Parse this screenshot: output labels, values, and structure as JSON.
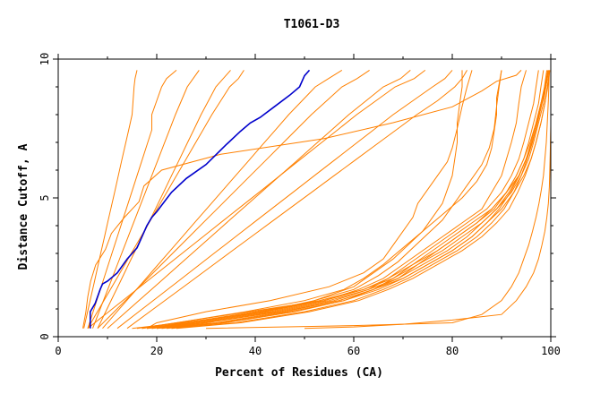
{
  "chart_data": {
    "type": "line",
    "title": "T1061-D3",
    "xlabel": "Percent of Residues (CA)",
    "ylabel": "Distance Cutoff, A",
    "xlim": [
      0,
      100
    ],
    "ylim": [
      0,
      10
    ],
    "xticks": [
      0,
      20,
      40,
      60,
      80,
      100
    ],
    "xtick_labels": [
      "0",
      "20",
      "40",
      "60",
      "80",
      "100"
    ],
    "yticks": [
      0,
      5,
      10
    ],
    "ytick_labels": [
      "0",
      "5",
      "10"
    ],
    "y_minor_step": 1,
    "x_minor_step": 10,
    "grid": false,
    "colors": {
      "highlight": "#0000cc",
      "others": "#ff8000"
    },
    "highlight_series": {
      "x": [
        6.5,
        6.5,
        7.5,
        8.5,
        9.0,
        10.0,
        12.0,
        14.0,
        16.0,
        17.0,
        18.0,
        19.0,
        20.0,
        23.0,
        26.0,
        30.0,
        34.0,
        37.0,
        39.0,
        41.0,
        44.0,
        47.0,
        49.0,
        50.0,
        51.0
      ],
      "y": [
        0.3,
        0.9,
        1.2,
        1.7,
        1.9,
        2.0,
        2.3,
        2.8,
        3.2,
        3.6,
        4.0,
        4.3,
        4.5,
        5.2,
        5.7,
        6.2,
        6.9,
        7.4,
        7.7,
        7.9,
        8.3,
        8.7,
        9.0,
        9.4,
        9.6
      ]
    },
    "other_series": [
      {
        "x": [
          5,
          5.6,
          6,
          6.6,
          7.6,
          9.6,
          10.8,
          13.4,
          16.4,
          17.4,
          21,
          33,
          54,
          68,
          80,
          86,
          89,
          93,
          94
        ],
        "y": [
          0.3,
          0.87,
          1.44,
          2.01,
          2.58,
          3.15,
          3.72,
          4.29,
          4.86,
          5.43,
          6,
          6.57,
          7.14,
          7.71,
          8.28,
          8.85,
          9.2,
          9.42,
          9.6
        ]
      },
      {
        "x": [
          5.2,
          5.9,
          6.6,
          7.3,
          8,
          8.7,
          9.4,
          10.1,
          10.8,
          11.5,
          12.2,
          12.9,
          13.6,
          14.3,
          15,
          15.2,
          15.4,
          15.6,
          16
        ],
        "y": [
          0.3,
          0.85,
          1.4,
          1.95,
          2.5,
          3.05,
          3.6,
          4.15,
          4.7,
          5.25,
          5.8,
          6.35,
          6.9,
          7.45,
          8,
          8.5,
          9,
          9.3,
          9.6
        ]
      },
      {
        "x": [
          6,
          7,
          8,
          9,
          10,
          11,
          12,
          13,
          14,
          15,
          16,
          17,
          18,
          19,
          19,
          20,
          21,
          22,
          24
        ],
        "y": [
          0.3,
          0.85,
          1.4,
          1.95,
          2.5,
          3.05,
          3.6,
          4.15,
          4.7,
          5.25,
          5.8,
          6.35,
          6.9,
          7.45,
          8,
          8.5,
          9,
          9.3,
          9.6
        ]
      },
      {
        "x": [
          7,
          8.2,
          9.4,
          10.6,
          11.8,
          13,
          14.2,
          15.4,
          16.6,
          17.8,
          19,
          20.2,
          21.4,
          22.6,
          23.8,
          25,
          26.2,
          27.4,
          28.6
        ],
        "y": [
          0.3,
          0.85,
          1.4,
          1.95,
          2.5,
          3.05,
          3.6,
          4.15,
          4.7,
          5.25,
          5.8,
          6.35,
          6.9,
          7.45,
          8,
          8.5,
          9,
          9.3,
          9.6
        ]
      },
      {
        "x": [
          8,
          9.5,
          11,
          12.5,
          14,
          15.5,
          17,
          18.5,
          20,
          21.5,
          23,
          24.5,
          26,
          27.5,
          29,
          30.5,
          32,
          33.5,
          35
        ],
        "y": [
          0.3,
          0.85,
          1.4,
          1.95,
          2.5,
          3.05,
          3.6,
          4.15,
          4.7,
          5.25,
          5.8,
          6.35,
          6.9,
          7.45,
          8,
          8.5,
          9,
          9.3,
          9.6
        ]
      },
      {
        "x": [
          6,
          7.8,
          9.6,
          11.4,
          13.2,
          15,
          16.8,
          18.6,
          20.4,
          22.2,
          24,
          25.8,
          27.6,
          29.4,
          31.2,
          33,
          34.8,
          36.6,
          37.7
        ],
        "y": [
          0.3,
          0.85,
          1.4,
          1.95,
          2.5,
          3.05,
          3.6,
          4.15,
          4.7,
          5.25,
          5.8,
          6.35,
          6.9,
          7.45,
          8,
          8.5,
          9,
          9.3,
          9.6
        ]
      },
      {
        "x": [
          9,
          11.7,
          14.4,
          17.1,
          19.8,
          22.5,
          25.2,
          27.9,
          30.6,
          33.3,
          36,
          38.7,
          41.4,
          44.1,
          46.8,
          49.5,
          52.2,
          54.9,
          57.6
        ],
        "y": [
          0.3,
          0.85,
          1.4,
          1.95,
          2.5,
          3.05,
          3.6,
          4.15,
          4.7,
          5.25,
          5.8,
          6.35,
          6.9,
          7.45,
          8,
          8.5,
          9,
          9.3,
          9.6
        ]
      },
      {
        "x": [
          8,
          11.1,
          14.2,
          17.3,
          20.4,
          23.5,
          26.6,
          29.7,
          32.8,
          35.9,
          39,
          42.1,
          45.2,
          48.3,
          51.4,
          54.5,
          57.6,
          60.7,
          63.2
        ],
        "y": [
          0.3,
          0.85,
          1.4,
          1.95,
          2.5,
          3.05,
          3.6,
          4.15,
          4.7,
          5.25,
          5.8,
          6.35,
          6.9,
          7.45,
          8,
          8.5,
          9,
          9.3,
          9.6
        ]
      },
      {
        "x": [
          10,
          13.5,
          17,
          20.5,
          24,
          27.5,
          31,
          34.5,
          38,
          41.5,
          45,
          48.5,
          52,
          55.5,
          59,
          62.5,
          66,
          69.5,
          71.5
        ],
        "y": [
          0.3,
          0.85,
          1.4,
          1.95,
          2.5,
          3.05,
          3.6,
          4.15,
          4.7,
          5.25,
          5.8,
          6.35,
          6.9,
          7.45,
          8,
          8.5,
          9,
          9.3,
          9.6
        ]
      },
      {
        "x": [
          6,
          9.9,
          13.8,
          17.7,
          21.6,
          25.5,
          29.4,
          33.3,
          37.2,
          41.1,
          45,
          48.9,
          52.8,
          56.7,
          60.6,
          64.5,
          68.4,
          72.3,
          74.5
        ],
        "y": [
          0.3,
          0.85,
          1.4,
          1.95,
          2.5,
          3.05,
          3.6,
          4.15,
          4.7,
          5.25,
          5.8,
          6.35,
          6.9,
          7.45,
          8,
          8.5,
          9,
          9.3,
          9.6
        ]
      },
      {
        "x": [
          12,
          16,
          20,
          24,
          28,
          32,
          36,
          40,
          44,
          48,
          52,
          56,
          60,
          64,
          68,
          72,
          76,
          78.5,
          80
        ],
        "y": [
          0.3,
          0.85,
          1.4,
          1.95,
          2.5,
          3.05,
          3.6,
          4.15,
          4.7,
          5.25,
          5.8,
          6.35,
          6.9,
          7.45,
          8,
          8.5,
          9,
          9.3,
          9.6
        ]
      },
      {
        "x": [
          14,
          18.2,
          22.4,
          26.6,
          30.8,
          35,
          39.2,
          43.4,
          47.6,
          51.8,
          56,
          60.2,
          64.4,
          68.6,
          72.8,
          77,
          80.5,
          82,
          83
        ],
        "y": [
          0.3,
          0.85,
          1.4,
          1.95,
          2.5,
          3.05,
          3.6,
          4.15,
          4.7,
          5.25,
          5.8,
          6.35,
          6.9,
          7.45,
          8,
          8.5,
          9,
          9.3,
          9.6
        ]
      },
      {
        "x": [
          18,
          20,
          30,
          43,
          55,
          62,
          66,
          68,
          70,
          72,
          73,
          75,
          77,
          79,
          80,
          81,
          82,
          83,
          84
        ],
        "y": [
          0.3,
          0.5,
          0.9,
          1.3,
          1.8,
          2.3,
          2.8,
          3.3,
          3.8,
          4.3,
          4.8,
          5.3,
          5.8,
          6.3,
          6.8,
          7.5,
          8.3,
          9,
          9.6
        ]
      },
      {
        "x": [
          17,
          22,
          35,
          50,
          60,
          65,
          69,
          72,
          75,
          78,
          80,
          82,
          84,
          86,
          87.5,
          88.5,
          89,
          89.5,
          90
        ],
        "y": [
          0.3,
          0.45,
          0.8,
          1.2,
          1.7,
          2.2,
          2.7,
          3.2,
          3.7,
          4.2,
          4.7,
          5.2,
          5.7,
          6.2,
          6.8,
          7.5,
          8.3,
          9,
          9.6
        ]
      },
      {
        "x": [
          15,
          25,
          40,
          52,
          60,
          64,
          68,
          71,
          74,
          76,
          78,
          79,
          80,
          80.5,
          81,
          81,
          81.5,
          82,
          82
        ],
        "y": [
          0.3,
          0.5,
          0.85,
          1.3,
          1.8,
          2.3,
          2.8,
          3.3,
          3.8,
          4.3,
          4.8,
          5.3,
          5.8,
          6.4,
          7,
          7.7,
          8.4,
          9,
          9.6
        ]
      },
      {
        "x": [
          16,
          24,
          38,
          50,
          58,
          62,
          66,
          70,
          74,
          78,
          82,
          85,
          87,
          88,
          88.5,
          89,
          89,
          89.5,
          90
        ],
        "y": [
          0.3,
          0.5,
          0.9,
          1.3,
          1.7,
          2.1,
          2.6,
          3.2,
          3.8,
          4.4,
          5,
          5.6,
          6.2,
          6.8,
          7.4,
          8,
          8.6,
          9.1,
          9.6
        ]
      },
      {
        "x": [
          19,
          28,
          42,
          54,
          61,
          66,
          70,
          74,
          78,
          82,
          86,
          88,
          90,
          91,
          92,
          93,
          93.5,
          94,
          95
        ],
        "y": [
          0.3,
          0.5,
          0.9,
          1.3,
          1.7,
          2.1,
          2.6,
          3.1,
          3.6,
          4.1,
          4.6,
          5.2,
          5.8,
          6.4,
          7,
          7.7,
          8.4,
          9,
          9.6
        ]
      },
      {
        "x": [
          20,
          30,
          44,
          56,
          63,
          67,
          71,
          75,
          79,
          83,
          87,
          90,
          92,
          93.5,
          94.5,
          95.5,
          96.5,
          97,
          97.5
        ],
        "y": [
          0.3,
          0.5,
          0.9,
          1.3,
          1.7,
          2.1,
          2.6,
          3.1,
          3.6,
          4.1,
          4.6,
          5.2,
          5.8,
          6.4,
          7,
          7.7,
          8.4,
          9,
          9.6
        ]
      },
      {
        "x": [
          17,
          26,
          40,
          53,
          62,
          67,
          72,
          77,
          81,
          85,
          88,
          91,
          93,
          94.5,
          95.5,
          96.5,
          97.5,
          98,
          98.5
        ],
        "y": [
          0.3,
          0.5,
          0.9,
          1.3,
          1.7,
          2.1,
          2.6,
          3.1,
          3.6,
          4.1,
          4.6,
          5.2,
          5.8,
          6.4,
          7,
          7.7,
          8.4,
          9,
          9.6
        ]
      },
      {
        "x": [
          18,
          27,
          41,
          54,
          62,
          68,
          73,
          78,
          82,
          86,
          89,
          92,
          94,
          95.5,
          96.5,
          97.5,
          98.5,
          99,
          99.5
        ],
        "y": [
          0.3,
          0.5,
          0.9,
          1.3,
          1.7,
          2.1,
          2.6,
          3.1,
          3.6,
          4.1,
          4.6,
          5.2,
          5.8,
          6.4,
          7,
          7.7,
          8.4,
          9,
          9.6
        ]
      },
      {
        "x": [
          20,
          32,
          46,
          57,
          64,
          68,
          72,
          76,
          80,
          84,
          88,
          91,
          93.5,
          95,
          96,
          97,
          98,
          99,
          99.5
        ],
        "y": [
          0.3,
          0.5,
          0.9,
          1.3,
          1.7,
          2.1,
          2.6,
          3.1,
          3.6,
          4.1,
          4.6,
          5.2,
          5.8,
          6.4,
          7,
          7.7,
          8.4,
          9,
          9.6
        ]
      },
      {
        "x": [
          22,
          34,
          48,
          58,
          65,
          70,
          75,
          80,
          84,
          87,
          90,
          92.5,
          94.5,
          96,
          97,
          98,
          98.8,
          99.3,
          99.7
        ],
        "y": [
          0.3,
          0.5,
          0.9,
          1.3,
          1.7,
          2.1,
          2.6,
          3.1,
          3.6,
          4.1,
          4.6,
          5.2,
          5.8,
          6.4,
          7,
          7.7,
          8.4,
          9,
          9.6
        ]
      },
      {
        "x": [
          19,
          29,
          43,
          55,
          63,
          69,
          74,
          79,
          83,
          86,
          89,
          91.5,
          93.5,
          95,
          96.2,
          97.2,
          98,
          98.7,
          99.2
        ],
        "y": [
          0.3,
          0.5,
          0.9,
          1.3,
          1.7,
          2.1,
          2.6,
          3.1,
          3.6,
          4.1,
          4.6,
          5.2,
          5.8,
          6.4,
          7,
          7.7,
          8.4,
          9,
          9.6
        ]
      },
      {
        "x": [
          21,
          33,
          47,
          58,
          64,
          69,
          73,
          77,
          81,
          85,
          88.5,
          91,
          93,
          94.5,
          95.8,
          97,
          98,
          98.8,
          99.4
        ],
        "y": [
          0.3,
          0.5,
          0.9,
          1.3,
          1.7,
          2.1,
          2.6,
          3.1,
          3.6,
          4.1,
          4.6,
          5.2,
          5.8,
          6.4,
          7,
          7.7,
          8.4,
          9,
          9.6
        ]
      },
      {
        "x": [
          23,
          36,
          50,
          60,
          66,
          71,
          76,
          81,
          85,
          88,
          90.5,
          92.5,
          94,
          95.2,
          96.3,
          97.3,
          98.2,
          98.9,
          99.5
        ],
        "y": [
          0.3,
          0.5,
          0.9,
          1.3,
          1.7,
          2.1,
          2.6,
          3.1,
          3.6,
          4.1,
          4.6,
          5.2,
          5.8,
          6.4,
          7,
          7.7,
          8.4,
          9,
          9.6
        ]
      },
      {
        "x": [
          24,
          37,
          51,
          61,
          67,
          72,
          77,
          82,
          86,
          89,
          91.5,
          93.3,
          94.8,
          96,
          97,
          98,
          98.8,
          99.4,
          99.8
        ],
        "y": [
          0.3,
          0.5,
          0.9,
          1.3,
          1.7,
          2.1,
          2.6,
          3.1,
          3.6,
          4.1,
          4.6,
          5.2,
          5.8,
          6.4,
          7,
          7.7,
          8.4,
          9,
          9.6
        ]
      },
      {
        "x": [
          18,
          30,
          45,
          57,
          64,
          70,
          75,
          80,
          84,
          87,
          89.5,
          91.8,
          93.6,
          95,
          96.2,
          97.3,
          98.2,
          99,
          99.6
        ],
        "y": [
          0.3,
          0.5,
          0.9,
          1.3,
          1.7,
          2.1,
          2.6,
          3.1,
          3.6,
          4.1,
          4.6,
          5.2,
          5.8,
          6.4,
          7,
          7.7,
          8.4,
          9,
          9.6
        ]
      },
      {
        "x": [
          30,
          60,
          80,
          86,
          90,
          92,
          93.5,
          94.5,
          95.5,
          96.3,
          97,
          97.6,
          98.1,
          98.5,
          98.8,
          99.1,
          99.3,
          99.5,
          99.7
        ],
        "y": [
          0.3,
          0.4,
          0.5,
          0.8,
          1.3,
          1.8,
          2.3,
          2.8,
          3.3,
          3.8,
          4.3,
          4.8,
          5.3,
          5.8,
          6.4,
          7,
          7.7,
          8.5,
          9.6
        ]
      },
      {
        "x": [
          50,
          60,
          70,
          80,
          90,
          93,
          95,
          96.5,
          97.5,
          98.2,
          98.8,
          99.2,
          99.5,
          99.7,
          99.8,
          99.9,
          100,
          100,
          100
        ],
        "y": [
          0.3,
          0.35,
          0.45,
          0.6,
          0.8,
          1.3,
          1.8,
          2.3,
          2.8,
          3.3,
          3.8,
          4.3,
          4.8,
          5.4,
          6,
          6.8,
          7.6,
          8.5,
          9.6
        ]
      }
    ]
  }
}
